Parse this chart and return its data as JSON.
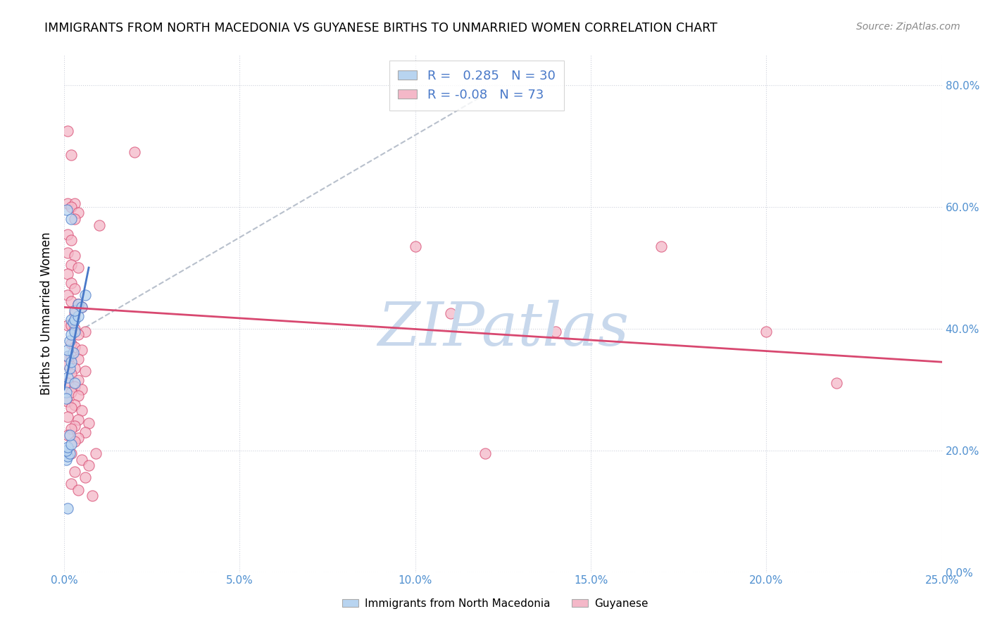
{
  "title": "IMMIGRANTS FROM NORTH MACEDONIA VS GUYANESE BIRTHS TO UNMARRIED WOMEN CORRELATION CHART",
  "source": "Source: ZipAtlas.com",
  "xlim": [
    0.0,
    0.25
  ],
  "ylim": [
    0.0,
    0.85
  ],
  "legend1_label": "Immigrants from North Macedonia",
  "legend2_label": "Guyanese",
  "R1": 0.285,
  "N1": 30,
  "R2": -0.08,
  "N2": 73,
  "color_blue": "#b8d4f0",
  "color_pink": "#f4b8c8",
  "line_blue": "#4878c8",
  "line_pink": "#d84870",
  "trend_dash_color": "#b8c0cc",
  "watermark_color": "#c8d8ec",
  "blue_scatter": [
    [
      0.0005,
      0.295
    ],
    [
      0.001,
      0.32
    ],
    [
      0.0015,
      0.335
    ],
    [
      0.001,
      0.355
    ],
    [
      0.002,
      0.345
    ],
    [
      0.0025,
      0.36
    ],
    [
      0.001,
      0.365
    ],
    [
      0.0015,
      0.38
    ],
    [
      0.002,
      0.39
    ],
    [
      0.003,
      0.395
    ],
    [
      0.002,
      0.415
    ],
    [
      0.0025,
      0.41
    ],
    [
      0.003,
      0.415
    ],
    [
      0.004,
      0.42
    ],
    [
      0.003,
      0.43
    ],
    [
      0.0005,
      0.185
    ],
    [
      0.001,
      0.19
    ],
    [
      0.0015,
      0.195
    ],
    [
      0.0005,
      0.2
    ],
    [
      0.001,
      0.205
    ],
    [
      0.002,
      0.21
    ],
    [
      0.0015,
      0.225
    ],
    [
      0.0008,
      0.595
    ],
    [
      0.002,
      0.58
    ],
    [
      0.004,
      0.44
    ],
    [
      0.005,
      0.435
    ],
    [
      0.003,
      0.31
    ],
    [
      0.001,
      0.105
    ],
    [
      0.0005,
      0.285
    ],
    [
      0.006,
      0.455
    ]
  ],
  "pink_scatter": [
    [
      0.001,
      0.725
    ],
    [
      0.002,
      0.685
    ],
    [
      0.001,
      0.605
    ],
    [
      0.003,
      0.605
    ],
    [
      0.002,
      0.6
    ],
    [
      0.004,
      0.59
    ],
    [
      0.003,
      0.58
    ],
    [
      0.001,
      0.555
    ],
    [
      0.002,
      0.545
    ],
    [
      0.001,
      0.525
    ],
    [
      0.003,
      0.52
    ],
    [
      0.002,
      0.505
    ],
    [
      0.004,
      0.5
    ],
    [
      0.001,
      0.49
    ],
    [
      0.002,
      0.475
    ],
    [
      0.003,
      0.465
    ],
    [
      0.001,
      0.455
    ],
    [
      0.002,
      0.445
    ],
    [
      0.004,
      0.44
    ],
    [
      0.005,
      0.435
    ],
    [
      0.003,
      0.425
    ],
    [
      0.001,
      0.405
    ],
    [
      0.002,
      0.405
    ],
    [
      0.003,
      0.4
    ],
    [
      0.006,
      0.395
    ],
    [
      0.004,
      0.39
    ],
    [
      0.002,
      0.375
    ],
    [
      0.003,
      0.37
    ],
    [
      0.005,
      0.365
    ],
    [
      0.001,
      0.355
    ],
    [
      0.002,
      0.355
    ],
    [
      0.004,
      0.35
    ],
    [
      0.001,
      0.34
    ],
    [
      0.003,
      0.335
    ],
    [
      0.006,
      0.33
    ],
    [
      0.002,
      0.325
    ],
    [
      0.004,
      0.315
    ],
    [
      0.001,
      0.31
    ],
    [
      0.003,
      0.305
    ],
    [
      0.005,
      0.3
    ],
    [
      0.002,
      0.295
    ],
    [
      0.004,
      0.29
    ],
    [
      0.001,
      0.28
    ],
    [
      0.003,
      0.275
    ],
    [
      0.002,
      0.27
    ],
    [
      0.005,
      0.265
    ],
    [
      0.001,
      0.255
    ],
    [
      0.004,
      0.25
    ],
    [
      0.007,
      0.245
    ],
    [
      0.003,
      0.24
    ],
    [
      0.002,
      0.235
    ],
    [
      0.006,
      0.23
    ],
    [
      0.001,
      0.225
    ],
    [
      0.004,
      0.22
    ],
    [
      0.003,
      0.215
    ],
    [
      0.002,
      0.195
    ],
    [
      0.005,
      0.185
    ],
    [
      0.007,
      0.175
    ],
    [
      0.003,
      0.165
    ],
    [
      0.006,
      0.155
    ],
    [
      0.002,
      0.145
    ],
    [
      0.009,
      0.195
    ],
    [
      0.004,
      0.135
    ],
    [
      0.008,
      0.125
    ],
    [
      0.1,
      0.535
    ],
    [
      0.11,
      0.425
    ],
    [
      0.14,
      0.395
    ],
    [
      0.17,
      0.535
    ],
    [
      0.2,
      0.395
    ],
    [
      0.22,
      0.31
    ],
    [
      0.01,
      0.57
    ],
    [
      0.02,
      0.69
    ],
    [
      0.12,
      0.195
    ]
  ],
  "blue_line_x": [
    0.0,
    0.007
  ],
  "blue_line_y": [
    0.3,
    0.5
  ],
  "pink_line_x": [
    0.0,
    0.25
  ],
  "pink_line_y": [
    0.435,
    0.345
  ],
  "dash_line_x": [
    0.004,
    0.12
  ],
  "dash_line_y": [
    0.395,
    0.785
  ]
}
